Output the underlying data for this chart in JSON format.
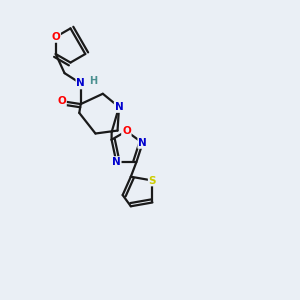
{
  "bg_color": "#eaeff5",
  "bond_color": "#1a1a1a",
  "atom_colors": {
    "O": "#ff0000",
    "N": "#0000cd",
    "S": "#cccc00",
    "H": "#4a9090",
    "C": "#1a1a1a"
  }
}
